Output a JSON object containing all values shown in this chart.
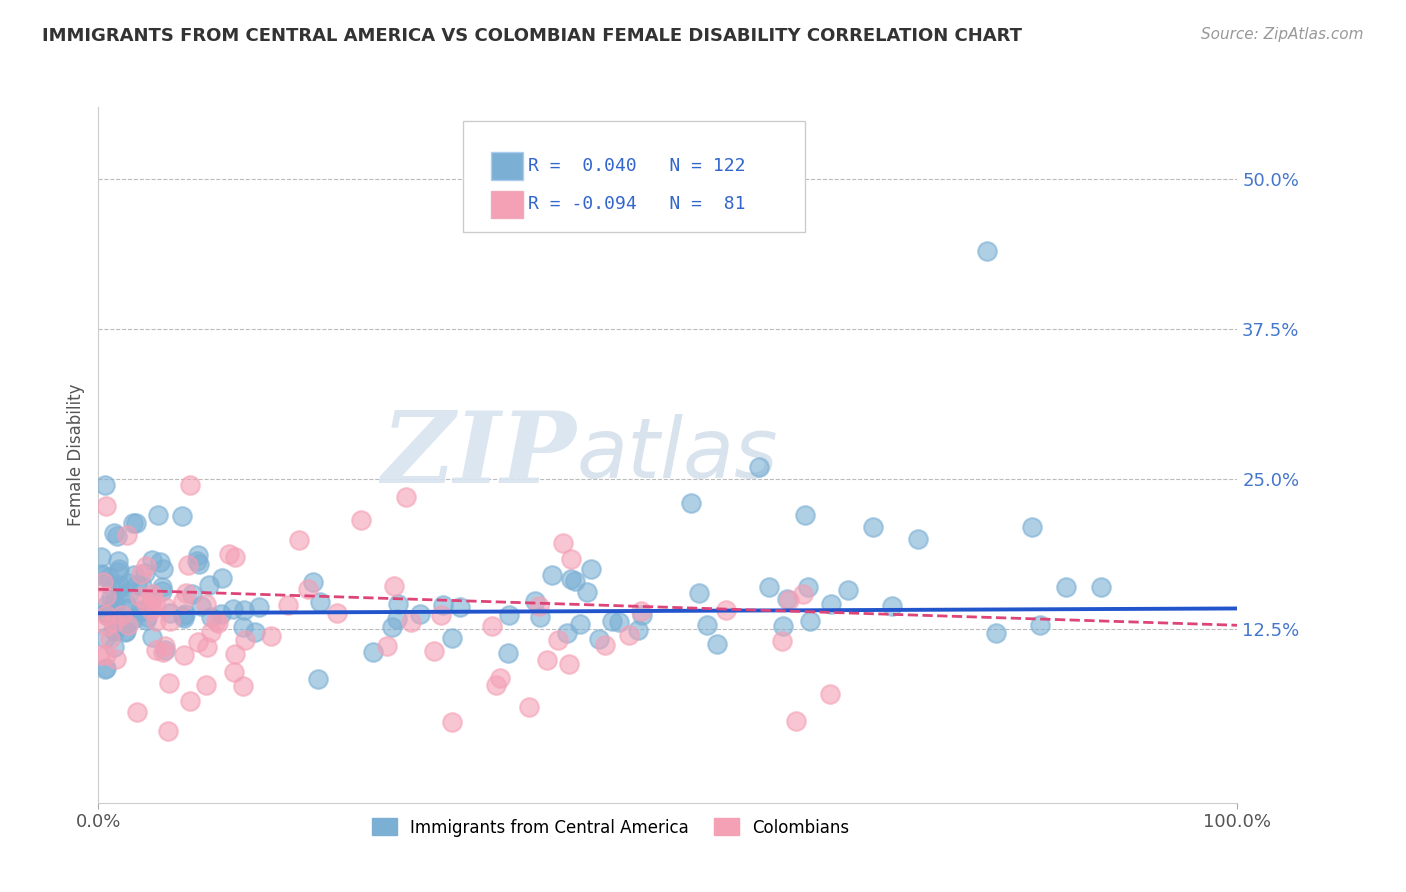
{
  "title": "IMMIGRANTS FROM CENTRAL AMERICA VS COLOMBIAN FEMALE DISABILITY CORRELATION CHART",
  "source": "Source: ZipAtlas.com",
  "ylabel": "Female Disability",
  "xlim": [
    0.0,
    1.0
  ],
  "ylim": [
    -0.02,
    0.56
  ],
  "yticks": [
    0.125,
    0.25,
    0.375,
    0.5
  ],
  "ytick_labels": [
    "12.5%",
    "25.0%",
    "37.5%",
    "50.0%"
  ],
  "xtick_labels": [
    "0.0%",
    "100.0%"
  ],
  "blue_color": "#7bafd4",
  "pink_color": "#f4a0b5",
  "blue_line_color": "#2255cc",
  "pink_line_color": "#dd4477",
  "legend_r_blue": "0.040",
  "legend_n_blue": "122",
  "legend_r_pink": "-0.094",
  "legend_n_pink": "81",
  "background_color": "#ffffff",
  "grid_color": "#bbbbbb",
  "blue_slope": 0.004,
  "blue_intercept": 0.138,
  "pink_slope": -0.03,
  "pink_intercept": 0.158,
  "watermark_zip": "ZIP",
  "watermark_atlas": "atlas",
  "series1_label": "Immigrants from Central America",
  "series2_label": "Colombians"
}
